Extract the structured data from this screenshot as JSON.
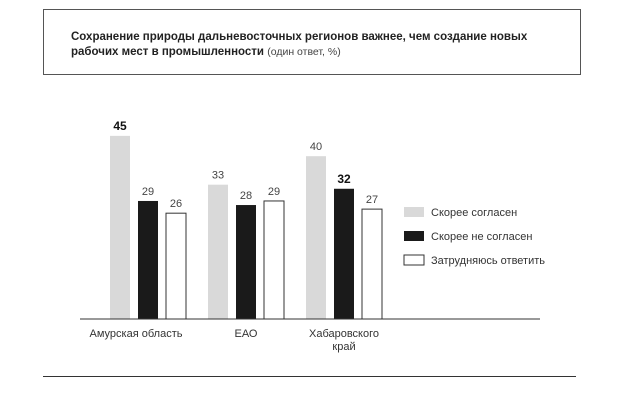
{
  "header": {
    "title": "Сохранение природы дальневосточных регионов важнее, чем создание новых рабочих мест в промышленности",
    "note": "(один ответ, %)"
  },
  "colors": {
    "agree": "#d9d9d9",
    "disagree": "#1a1a1a",
    "unsure": "#ffffff",
    "outline": "#333333"
  },
  "chart_data": {
    "type": "bar",
    "title": "Сохранение природы дальневосточных регионов важнее, чем создание новых рабочих мест в промышленности (один ответ, %)",
    "categories": [
      [
        "Амурская область"
      ],
      [
        "ЕАО"
      ],
      [
        "Хабаровского",
        "край"
      ]
    ],
    "series": [
      {
        "name": "Скорее согласен",
        "values": [
          45,
          33,
          40
        ],
        "style": "agree"
      },
      {
        "name": "Скорее не согласен",
        "values": [
          29,
          28,
          32
        ],
        "style": "disagree"
      },
      {
        "name": "Затрудняюсь ответить",
        "values": [
          26,
          29,
          27
        ],
        "style": "unsure"
      }
    ],
    "bold_labels": [
      [
        true,
        false,
        false
      ],
      [
        false,
        false,
        false
      ],
      [
        false,
        true,
        false
      ]
    ],
    "ylim": [
      0,
      50
    ],
    "grid": false,
    "legend": "right",
    "xlabel": "",
    "ylabel": ""
  }
}
